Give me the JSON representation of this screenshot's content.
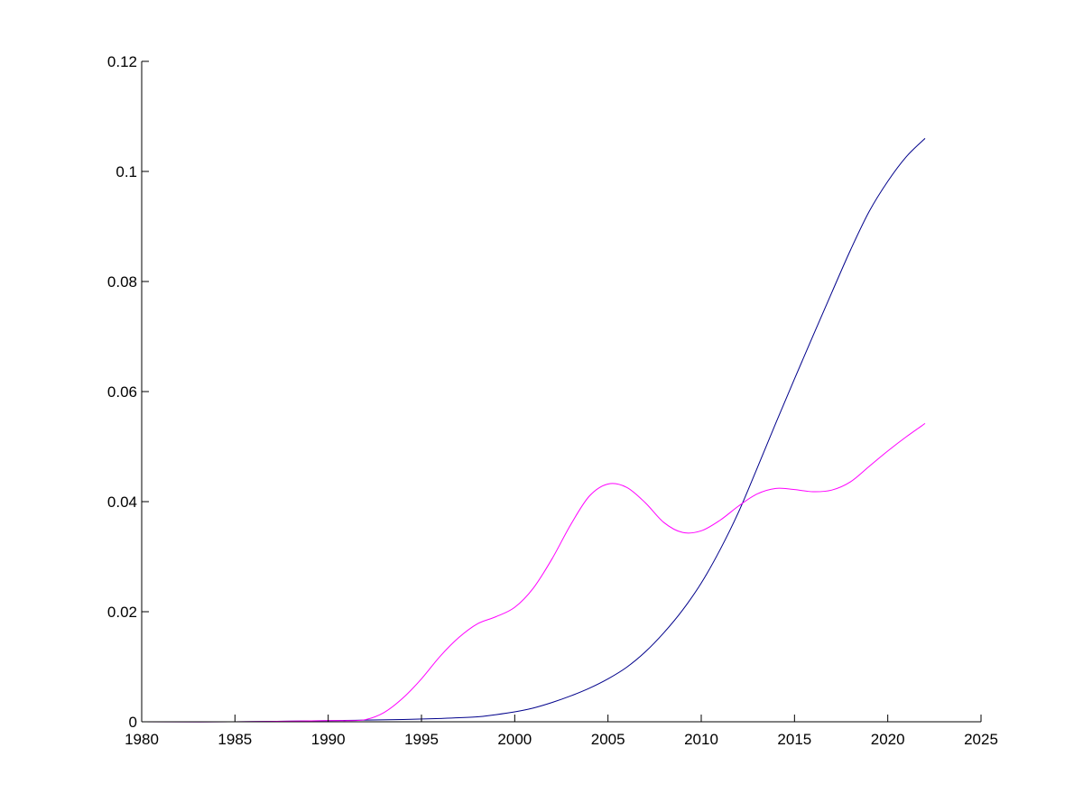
{
  "chart_data": {
    "type": "line",
    "title": "",
    "xlabel": "",
    "ylabel": "",
    "xlim": [
      1980,
      2025
    ],
    "ylim": [
      0,
      0.12
    ],
    "grid": false,
    "legend": "none",
    "x_ticks": [
      "1980",
      "1985",
      "1990",
      "1995",
      "2000",
      "2005",
      "2010",
      "2015",
      "2020",
      "2025"
    ],
    "y_ticks": [
      "0",
      "0.02",
      "0.04",
      "0.06",
      "0.08",
      "0.1",
      "0.12"
    ],
    "series": [
      {
        "color": "#00008b",
        "points": [
          [
            1980,
            0
          ],
          [
            1985,
            0
          ],
          [
            1990,
            0.0002
          ],
          [
            1992,
            0.0003
          ],
          [
            1994,
            0.0004
          ],
          [
            1996,
            0.0006
          ],
          [
            1998,
            0.0009
          ],
          [
            1999,
            0.0013
          ],
          [
            2000,
            0.0018
          ],
          [
            2001,
            0.0025
          ],
          [
            2002,
            0.0035
          ],
          [
            2003,
            0.0047
          ],
          [
            2004,
            0.0061
          ],
          [
            2005,
            0.0078
          ],
          [
            2006,
            0.0099
          ],
          [
            2007,
            0.0127
          ],
          [
            2008,
            0.0162
          ],
          [
            2009,
            0.0203
          ],
          [
            2010,
            0.0252
          ],
          [
            2011,
            0.0312
          ],
          [
            2012,
            0.0381
          ],
          [
            2013,
            0.0461
          ],
          [
            2014,
            0.0543
          ],
          [
            2015,
            0.0623
          ],
          [
            2016,
            0.0702
          ],
          [
            2017,
            0.078
          ],
          [
            2018,
            0.0857
          ],
          [
            2019,
            0.0927
          ],
          [
            2020,
            0.0982
          ],
          [
            2021,
            0.1027
          ],
          [
            2022,
            0.106
          ]
        ]
      },
      {
        "color": "#ff00ff",
        "points": [
          [
            1980,
            0
          ],
          [
            1985,
            0
          ],
          [
            1990,
            0.0002
          ],
          [
            1991,
            0.0002
          ],
          [
            1992,
            0.0004
          ],
          [
            1993,
            0.0017
          ],
          [
            1994,
            0.0043
          ],
          [
            1995,
            0.0078
          ],
          [
            1996,
            0.0119
          ],
          [
            1997,
            0.0153
          ],
          [
            1998,
            0.0178
          ],
          [
            1999,
            0.0191
          ],
          [
            2000,
            0.0208
          ],
          [
            2001,
            0.0243
          ],
          [
            2002,
            0.0296
          ],
          [
            2003,
            0.0358
          ],
          [
            2004,
            0.041
          ],
          [
            2005,
            0.0432
          ],
          [
            2006,
            0.0426
          ],
          [
            2007,
            0.0398
          ],
          [
            2008,
            0.0362
          ],
          [
            2009,
            0.0344
          ],
          [
            2010,
            0.0347
          ],
          [
            2011,
            0.0366
          ],
          [
            2012,
            0.0392
          ],
          [
            2013,
            0.0414
          ],
          [
            2014,
            0.0424
          ],
          [
            2015,
            0.0422
          ],
          [
            2016,
            0.0418
          ],
          [
            2017,
            0.0421
          ],
          [
            2018,
            0.0436
          ],
          [
            2019,
            0.0464
          ],
          [
            2020,
            0.0492
          ],
          [
            2021,
            0.0518
          ],
          [
            2022,
            0.0542
          ]
        ]
      }
    ]
  }
}
